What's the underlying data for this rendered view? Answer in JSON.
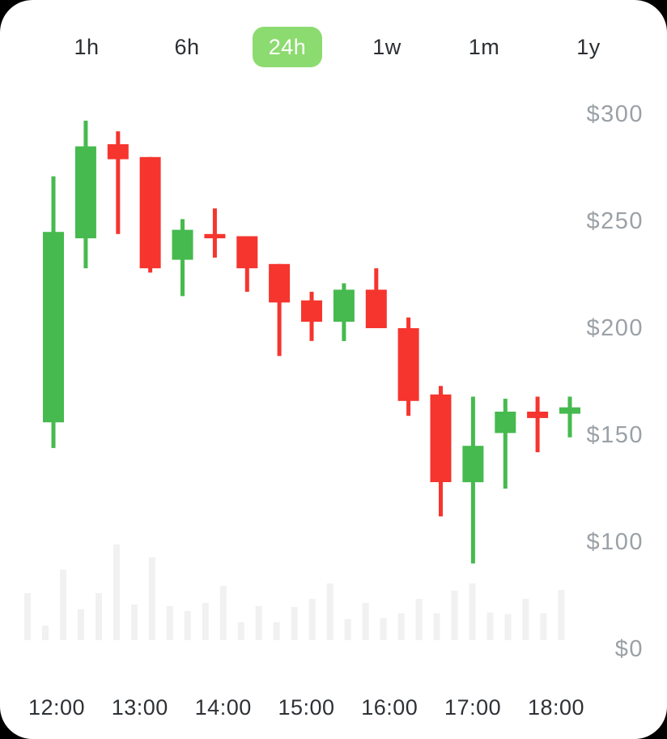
{
  "card": {
    "background": "#ffffff",
    "outside_background": "#000000"
  },
  "tabs": {
    "items": [
      {
        "label": "1h",
        "active": false
      },
      {
        "label": "6h",
        "active": false
      },
      {
        "label": "24h",
        "active": true
      },
      {
        "label": "1w",
        "active": false
      },
      {
        "label": "1m",
        "active": false
      },
      {
        "label": "1y",
        "active": false
      }
    ],
    "active_pill_color": "#8cdb70",
    "active_text_color": "#ffffff",
    "inactive_text_color": "#2b2e33"
  },
  "chart_data": {
    "type": "candlestick",
    "title": "",
    "currency_prefix": "$",
    "grid": false,
    "legend": false,
    "x_tick_labels": [
      "12:00",
      "13:00",
      "14:00",
      "15:00",
      "16:00",
      "17:00",
      "18:00"
    ],
    "y_tick_labels": [
      "$300",
      "$250",
      "$200",
      "$150",
      "$100",
      "$0"
    ],
    "y_axis_visible_price_range": [
      90,
      300
    ],
    "candles": [
      {
        "open": 156,
        "high": 271,
        "low": 144,
        "close": 245
      },
      {
        "open": 242,
        "high": 297,
        "low": 228,
        "close": 285
      },
      {
        "open": 286,
        "high": 292,
        "low": 244,
        "close": 279
      },
      {
        "open": 280,
        "high": 280,
        "low": 226,
        "close": 228
      },
      {
        "open": 232,
        "high": 251,
        "low": 215,
        "close": 246
      },
      {
        "open": 244,
        "high": 256,
        "low": 233,
        "close": 242
      },
      {
        "open": 243,
        "high": 243,
        "low": 217,
        "close": 228
      },
      {
        "open": 230,
        "high": 230,
        "low": 187,
        "close": 212
      },
      {
        "open": 213,
        "high": 217,
        "low": 194,
        "close": 203
      },
      {
        "open": 203,
        "high": 221,
        "low": 194,
        "close": 218
      },
      {
        "open": 218,
        "high": 228,
        "low": 200,
        "close": 200
      },
      {
        "open": 200,
        "high": 205,
        "low": 159,
        "close": 166
      },
      {
        "open": 169,
        "high": 173,
        "low": 112,
        "close": 128
      },
      {
        "open": 128,
        "high": 168,
        "low": 90,
        "close": 145
      },
      {
        "open": 151,
        "high": 167,
        "low": 125,
        "close": 161
      },
      {
        "open": 161,
        "high": 168,
        "low": 142,
        "close": 158
      },
      {
        "open": 160,
        "high": 168,
        "low": 149,
        "close": 163
      }
    ],
    "volume_bars_relative_heights": [
      58,
      18,
      87,
      38,
      58,
      118,
      44,
      102,
      42,
      36,
      46,
      67,
      22,
      42,
      22,
      41,
      51,
      70,
      26,
      46,
      27,
      33,
      51,
      33,
      61,
      70,
      34,
      32,
      51,
      33,
      62
    ],
    "colors": {
      "up": "#46ba4e",
      "down": "#f5352e",
      "volume_bar": "#f1f1f1",
      "y_label": "#9ba1a6",
      "x_label": "#2e3135"
    }
  }
}
